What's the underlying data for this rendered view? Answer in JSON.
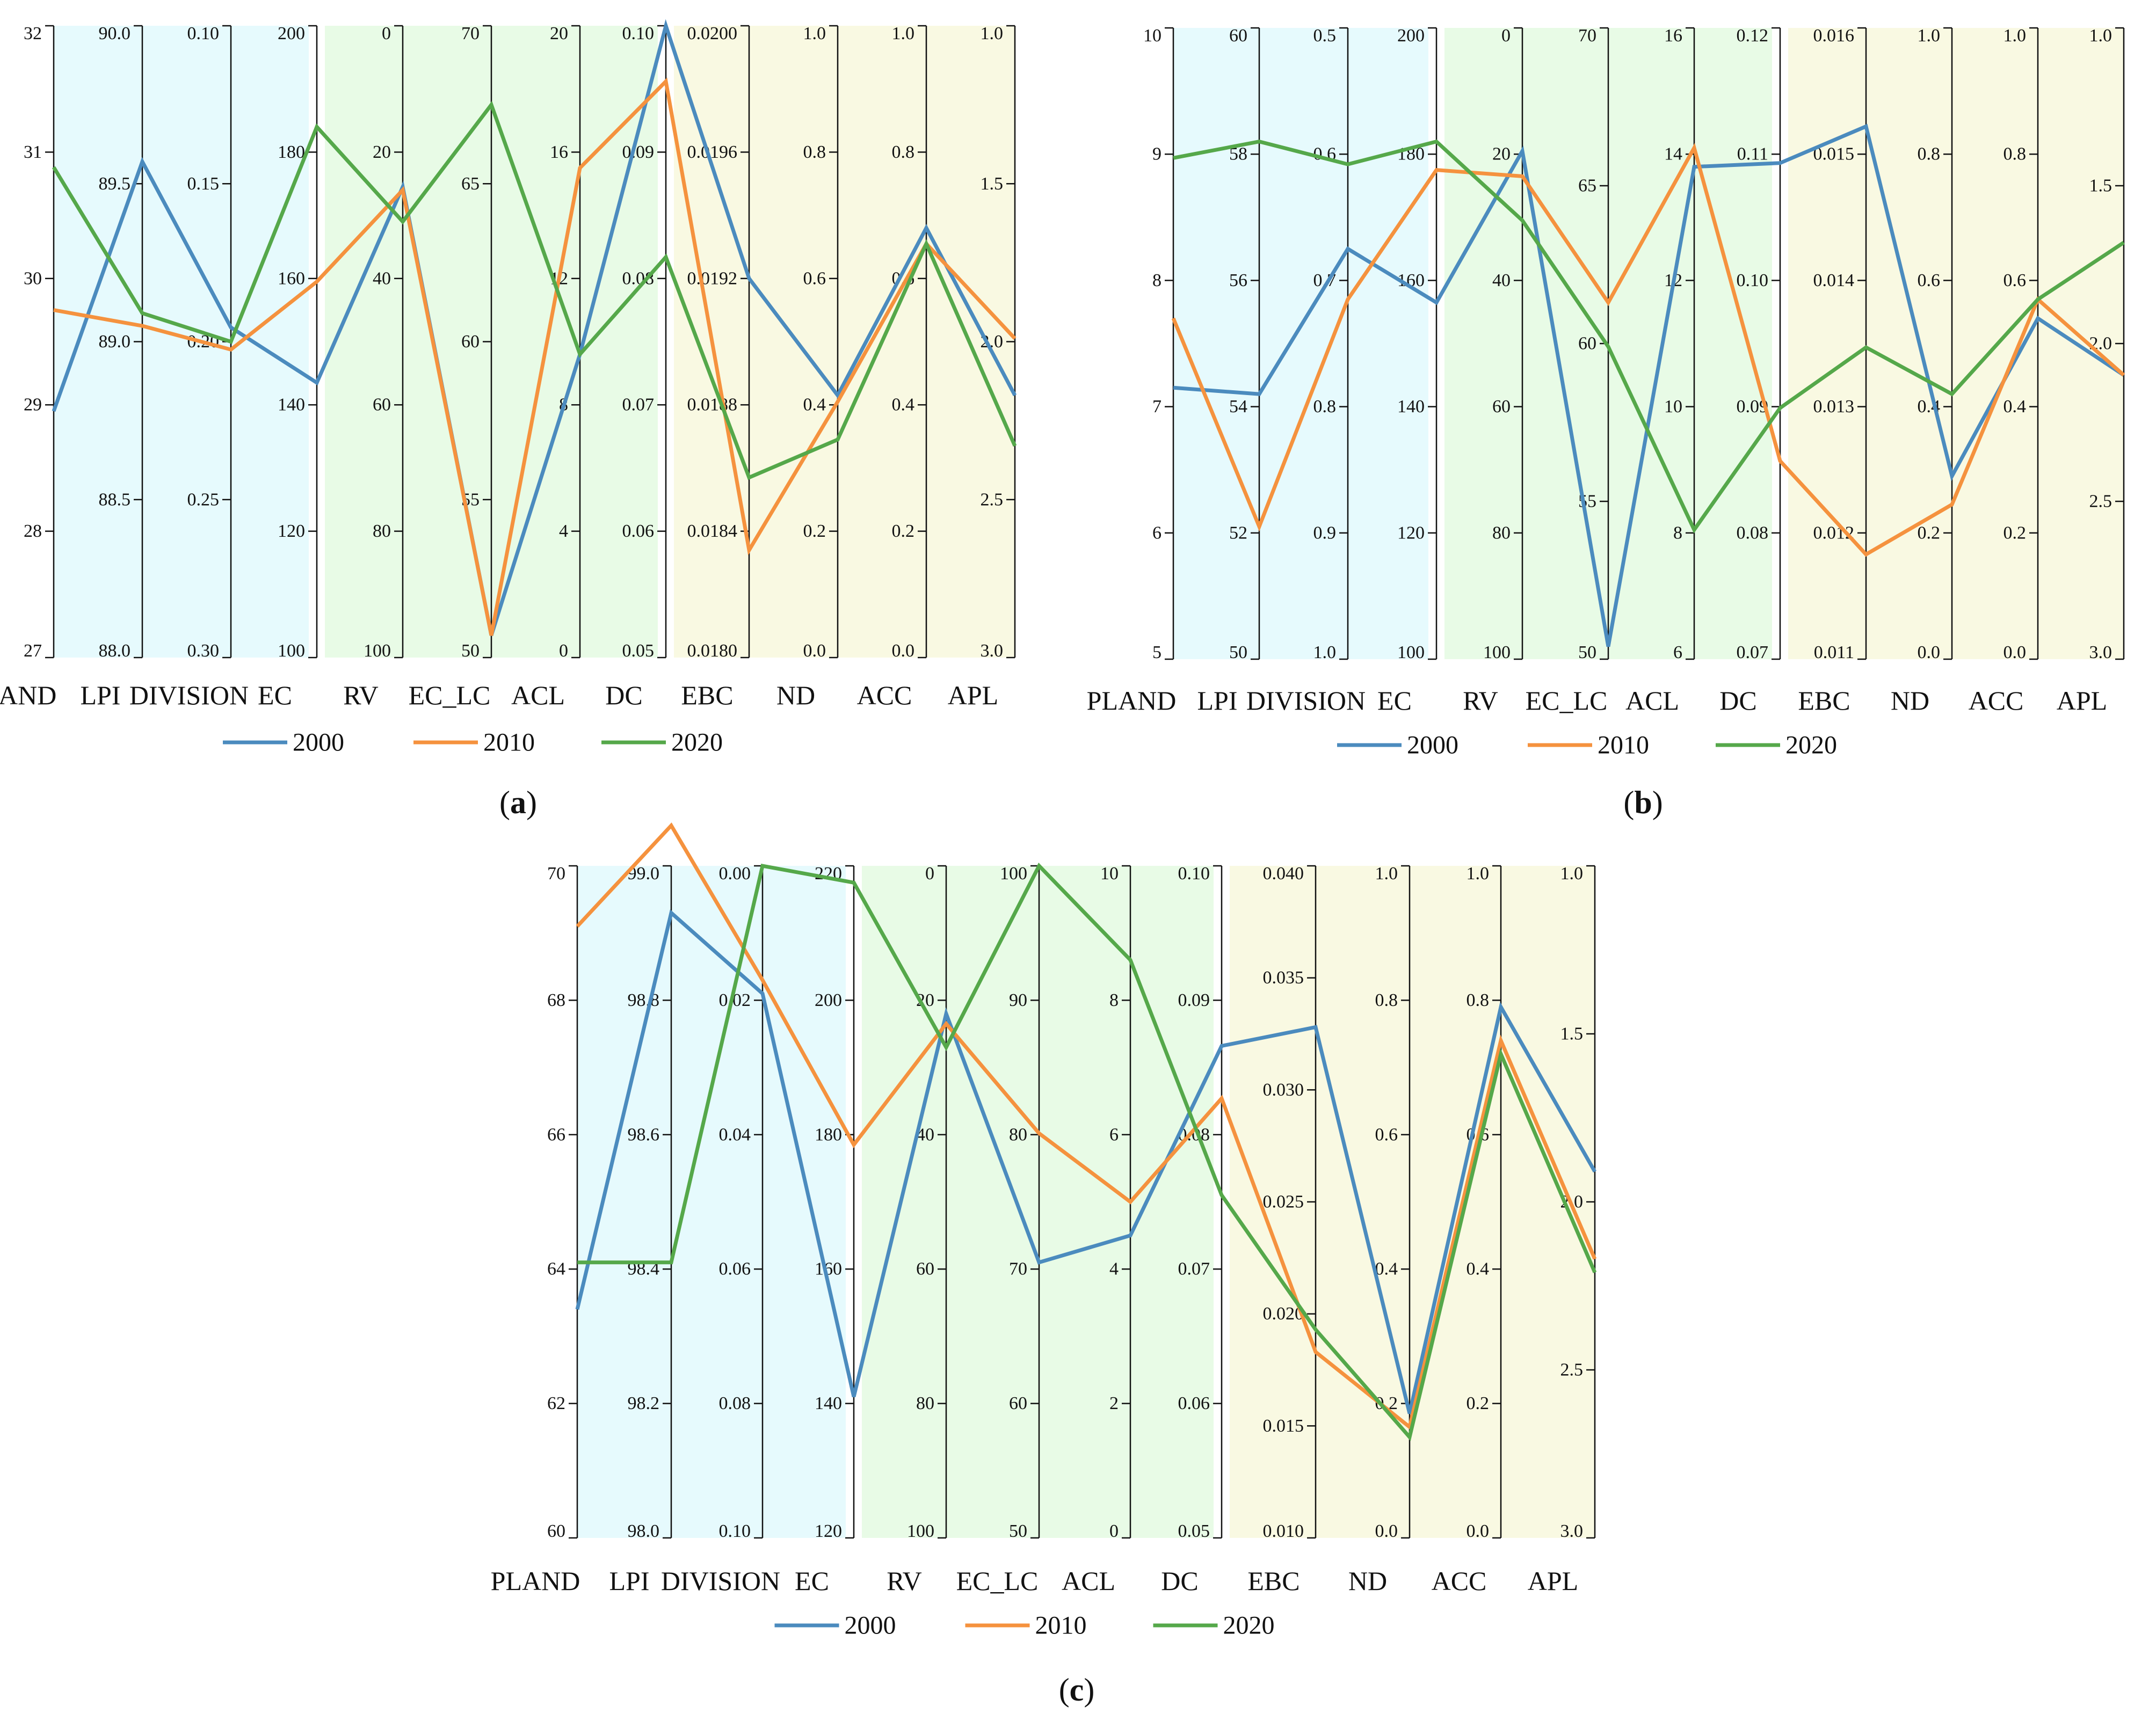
{
  "figure": {
    "axis_names": [
      "PLAND",
      "LPI",
      "DIVISION",
      "EC",
      "RV",
      "EC_LC",
      "ACL",
      "DC",
      "EBC",
      "ND",
      "ACC",
      "APL"
    ],
    "legend": [
      "2000",
      "2010",
      "2020"
    ],
    "series_colors": {
      "2000": "#4b8bbe",
      "2010": "#f5923e",
      "2020": "#55a84a"
    },
    "band_colors": [
      "#e6fafd",
      "#e8fbe6",
      "#f9f9e2"
    ]
  },
  "chart_data": [
    {
      "type": "parallel-coordinates",
      "panel": "(a)",
      "panel_letter": "a",
      "axes": [
        {
          "name": "PLAND",
          "range": [
            27,
            32
          ],
          "ticks": [
            "32",
            "31",
            "30",
            "29",
            "28",
            "27"
          ]
        },
        {
          "name": "LPI",
          "range": [
            88.0,
            90.0
          ],
          "ticks": [
            "90.0",
            "89.5",
            "89.0",
            "88.5",
            "88.0"
          ]
        },
        {
          "name": "DIVISION",
          "range": [
            0.3,
            0.1
          ],
          "ticks": [
            "0.10",
            "0.15",
            "0.20",
            "0.25",
            "0.30"
          ]
        },
        {
          "name": "EC",
          "range": [
            100,
            200
          ],
          "ticks": [
            "200",
            "180",
            "160",
            "140",
            "120",
            "100"
          ]
        },
        {
          "name": "RV",
          "range": [
            100,
            0
          ],
          "ticks": [
            "0",
            "20",
            "40",
            "60",
            "80",
            "100"
          ]
        },
        {
          "name": "EC_LC",
          "range": [
            50,
            70
          ],
          "ticks": [
            "70",
            "65",
            "60",
            "55",
            "50"
          ]
        },
        {
          "name": "ACL",
          "range": [
            0,
            20
          ],
          "ticks": [
            "20",
            "16",
            "12",
            "8",
            "4",
            "0"
          ]
        },
        {
          "name": "DC",
          "range": [
            0.05,
            0.1
          ],
          "ticks": [
            "0.10",
            "0.09",
            "0.08",
            "0.07",
            "0.06",
            "0.05"
          ]
        },
        {
          "name": "EBC",
          "range": [
            0.018,
            0.02
          ],
          "ticks": [
            "0.0200",
            "0.0196",
            "0.0192",
            "0.0188",
            "0.0184",
            "0.0180"
          ]
        },
        {
          "name": "ND",
          "range": [
            0.0,
            1.0
          ],
          "ticks": [
            "1.0",
            "0.8",
            "0.6",
            "0.4",
            "0.2",
            "0.0"
          ]
        },
        {
          "name": "ACC",
          "range": [
            0.0,
            1.0
          ],
          "ticks": [
            "1.0",
            "0.8",
            "0.6",
            "0.4",
            "0.2",
            "0.0"
          ]
        },
        {
          "name": "APL",
          "range": [
            3.0,
            1.0
          ],
          "ticks": [
            "1.0",
            "1.5",
            "2.0",
            "2.5",
            "3.0"
          ]
        }
      ],
      "series": [
        {
          "name": "2000",
          "values": [
            28.95,
            89.57,
            0.1955,
            143.5,
            25.5,
            50.7,
            9.6,
            0.1,
            0.0192,
            0.415,
            0.68,
            2.17
          ]
        },
        {
          "name": "2010",
          "values": [
            29.75,
            89.05,
            0.2025,
            159.5,
            26.0,
            50.7,
            15.5,
            0.0956,
            0.01834,
            0.405,
            0.655,
            1.99
          ]
        },
        {
          "name": "2020",
          "values": [
            30.88,
            89.09,
            0.2,
            184.0,
            31.0,
            67.5,
            9.6,
            0.0817,
            0.01857,
            0.345,
            0.655,
            2.33
          ]
        }
      ]
    },
    {
      "type": "parallel-coordinates",
      "panel": "(b)",
      "panel_letter": "b",
      "axes": [
        {
          "name": "PLAND",
          "range": [
            5,
            10
          ],
          "ticks": [
            "10",
            "9",
            "8",
            "7",
            "6",
            "5"
          ]
        },
        {
          "name": "LPI",
          "range": [
            50,
            60
          ],
          "ticks": [
            "60",
            "58",
            "56",
            "54",
            "52",
            "50"
          ]
        },
        {
          "name": "DIVISION",
          "range": [
            1.0,
            0.5
          ],
          "ticks": [
            "0.5",
            "0.6",
            "0.7",
            "0.8",
            "0.9",
            "1.0"
          ]
        },
        {
          "name": "EC",
          "range": [
            100,
            200
          ],
          "ticks": [
            "200",
            "180",
            "160",
            "140",
            "120",
            "100"
          ]
        },
        {
          "name": "RV",
          "range": [
            100,
            0
          ],
          "ticks": [
            "0",
            "20",
            "40",
            "60",
            "80",
            "100"
          ]
        },
        {
          "name": "EC_LC",
          "range": [
            50,
            70
          ],
          "ticks": [
            "70",
            "65",
            "60",
            "55",
            "50"
          ]
        },
        {
          "name": "ACL",
          "range": [
            6,
            16
          ],
          "ticks": [
            "16",
            "14",
            "12",
            "10",
            "8",
            "6"
          ]
        },
        {
          "name": "DC",
          "range": [
            0.07,
            0.12
          ],
          "ticks": [
            "0.12",
            "0.11",
            "0.10",
            "0.09",
            "0.08",
            "0.07"
          ]
        },
        {
          "name": "EBC",
          "range": [
            0.011,
            0.016
          ],
          "ticks": [
            "0.016",
            "0.015",
            "0.014",
            "0.013",
            "0.012",
            "0.011"
          ]
        },
        {
          "name": "ND",
          "range": [
            0.0,
            1.0
          ],
          "ticks": [
            "1.0",
            "0.8",
            "0.6",
            "0.4",
            "0.2",
            "0.0"
          ]
        },
        {
          "name": "ACC",
          "range": [
            0.0,
            1.0
          ],
          "ticks": [
            "1.0",
            "0.8",
            "0.6",
            "0.4",
            "0.2",
            "0.0"
          ]
        },
        {
          "name": "APL",
          "range": [
            3.0,
            1.0
          ],
          "ticks": [
            "1.0",
            "1.5",
            "2.0",
            "2.5",
            "3.0"
          ]
        }
      ],
      "series": [
        {
          "name": "2000",
          "values": [
            7.15,
            54.2,
            0.675,
            156.5,
            19.5,
            50.4,
            13.8,
            0.1093,
            0.01522,
            0.29,
            0.54,
            2.1
          ]
        },
        {
          "name": "2010",
          "values": [
            7.7,
            52.1,
            0.715,
            177.5,
            23.5,
            61.3,
            14.1,
            0.0857,
            0.01183,
            0.245,
            0.57,
            2.1
          ]
        },
        {
          "name": "2020",
          "values": [
            8.97,
            58.2,
            0.608,
            182.0,
            30.5,
            59.9,
            8.05,
            0.0899,
            0.01347,
            0.42,
            0.57,
            1.68
          ]
        }
      ]
    },
    {
      "type": "parallel-coordinates",
      "panel": "(c)",
      "panel_letter": "c",
      "axes": [
        {
          "name": "PLAND",
          "range": [
            60,
            70
          ],
          "ticks": [
            "70",
            "68",
            "66",
            "64",
            "62",
            "60"
          ]
        },
        {
          "name": "LPI",
          "range": [
            98.0,
            99.0
          ],
          "ticks": [
            "99.0",
            "98.8",
            "98.6",
            "98.4",
            "98.2",
            "98.0"
          ]
        },
        {
          "name": "DIVISION",
          "range": [
            0.1,
            0.0
          ],
          "ticks": [
            "0.00",
            "0.02",
            "0.04",
            "0.06",
            "0.08",
            "0.10"
          ]
        },
        {
          "name": "EC",
          "range": [
            120,
            220
          ],
          "ticks": [
            "220",
            "200",
            "180",
            "160",
            "140",
            "120"
          ]
        },
        {
          "name": "RV",
          "range": [
            100,
            0
          ],
          "ticks": [
            "0",
            "20",
            "40",
            "60",
            "80",
            "100"
          ]
        },
        {
          "name": "EC_LC",
          "range": [
            50,
            100
          ],
          "ticks": [
            "100",
            "90",
            "80",
            "70",
            "60",
            "50"
          ]
        },
        {
          "name": "ACL",
          "range": [
            0,
            10
          ],
          "ticks": [
            "10",
            "8",
            "6",
            "4",
            "2",
            "0"
          ]
        },
        {
          "name": "DC",
          "range": [
            0.05,
            0.1
          ],
          "ticks": [
            "0.10",
            "0.09",
            "0.08",
            "0.07",
            "0.06",
            "0.05"
          ]
        },
        {
          "name": "EBC",
          "range": [
            0.01,
            0.04
          ],
          "ticks": [
            "0.040",
            "0.035",
            "0.030",
            "0.025",
            "0.020",
            "0.015",
            "0.010"
          ]
        },
        {
          "name": "ND",
          "range": [
            0.0,
            1.0
          ],
          "ticks": [
            "1.0",
            "0.8",
            "0.6",
            "0.4",
            "0.2",
            "0.0"
          ]
        },
        {
          "name": "ACC",
          "range": [
            0.0,
            1.0
          ],
          "ticks": [
            "1.0",
            "0.8",
            "0.6",
            "0.4",
            "0.2",
            "0.0"
          ]
        },
        {
          "name": "APL",
          "range": [
            3.0,
            1.0
          ],
          "ticks": [
            "1.0",
            "1.5",
            "2.0",
            "2.5",
            "3.0"
          ]
        }
      ],
      "series": [
        {
          "name": "2000",
          "values": [
            63.4,
            98.93,
            0.019,
            141.0,
            22.0,
            70.5,
            4.5,
            0.0866,
            0.0328,
            0.185,
            0.79,
            1.91
          ]
        },
        {
          "name": "2010",
          "values": [
            69.1,
            99.06,
            0.017,
            178.5,
            23.5,
            80.1,
            5.0,
            0.0827,
            0.0183,
            0.165,
            0.74,
            2.17
          ]
        },
        {
          "name": "2020",
          "values": [
            64.1,
            98.41,
            0.0,
            217.5,
            27.0,
            100.0,
            8.6,
            0.0755,
            0.0193,
            0.15,
            0.72,
            2.21
          ]
        }
      ]
    }
  ]
}
